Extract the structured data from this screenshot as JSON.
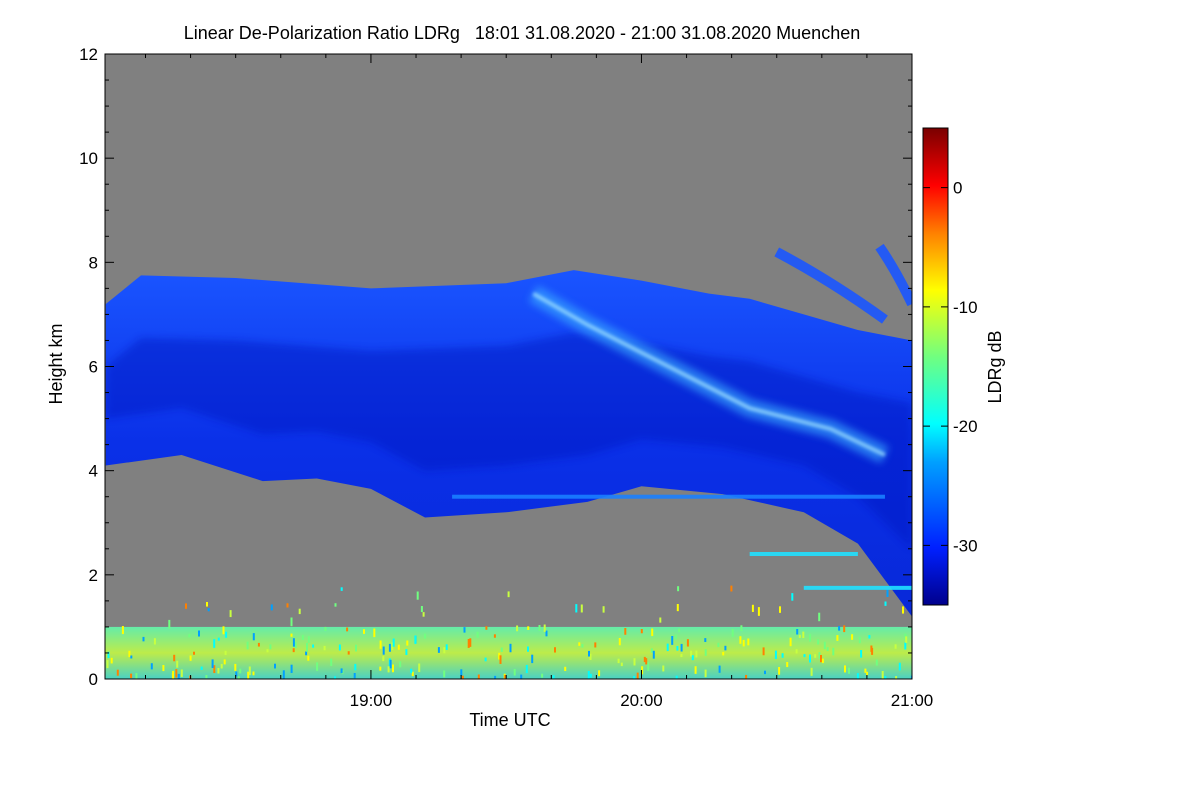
{
  "chart_data": {
    "type": "heatmap",
    "title": "Linear De-Polarization Ratio LDRg   18:01 31.08.2020 - 21:00 31.08.2020 Muenchen",
    "xlabel": "Time UTC",
    "ylabel": "Height km",
    "x_range_hours": [
      18.017,
      21.0
    ],
    "x_ticks": [
      {
        "value": 19.0,
        "label": "19:00"
      },
      {
        "value": 20.0,
        "label": "20:00"
      },
      {
        "value": 21.0,
        "label": "21:00"
      }
    ],
    "y_range_km": [
      0,
      12
    ],
    "y_ticks": [
      0,
      2,
      4,
      6,
      8,
      10,
      12
    ],
    "colorbar": {
      "label": "LDRg dB",
      "range": [
        -35,
        5
      ],
      "ticks": [
        0,
        -10,
        -20,
        -30
      ]
    },
    "no_data_color": "#808080",
    "cloud_layer": {
      "description_values": "cirrus layer, LDRg mostly -33 to -28 dB",
      "top_km": [
        {
          "t": 18.02,
          "h": 7.2
        },
        {
          "t": 18.15,
          "h": 7.75
        },
        {
          "t": 18.5,
          "h": 7.7
        },
        {
          "t": 19.0,
          "h": 7.5
        },
        {
          "t": 19.5,
          "h": 7.6
        },
        {
          "t": 19.75,
          "h": 7.85
        },
        {
          "t": 20.0,
          "h": 7.65
        },
        {
          "t": 20.25,
          "h": 7.4
        },
        {
          "t": 20.4,
          "h": 7.3
        },
        {
          "t": 20.6,
          "h": 7.0
        },
        {
          "t": 20.8,
          "h": 6.7
        },
        {
          "t": 21.0,
          "h": 6.5
        }
      ],
      "base_km": [
        {
          "t": 18.02,
          "h": 4.1
        },
        {
          "t": 18.3,
          "h": 4.3
        },
        {
          "t": 18.6,
          "h": 3.8
        },
        {
          "t": 18.8,
          "h": 3.85
        },
        {
          "t": 19.0,
          "h": 3.65
        },
        {
          "t": 19.2,
          "h": 3.1
        },
        {
          "t": 19.5,
          "h": 3.2
        },
        {
          "t": 19.8,
          "h": 3.4
        },
        {
          "t": 20.0,
          "h": 3.7
        },
        {
          "t": 20.3,
          "h": 3.55
        },
        {
          "t": 20.6,
          "h": 3.2
        },
        {
          "t": 20.8,
          "h": 2.6
        },
        {
          "t": 21.0,
          "h": 1.2
        }
      ],
      "depolarization_streak": {
        "ldr_db": -22,
        "path": [
          {
            "t": 19.6,
            "h": 7.4
          },
          {
            "t": 19.8,
            "h": 6.8
          },
          {
            "t": 20.1,
            "h": 6.0
          },
          {
            "t": 20.4,
            "h": 5.2
          },
          {
            "t": 20.7,
            "h": 4.8
          },
          {
            "t": 20.9,
            "h": 4.3
          }
        ]
      },
      "upper_fallstreaks": [
        {
          "t_start": 20.5,
          "h_start": 8.2,
          "t_end": 20.9,
          "h_end": 6.9
        },
        {
          "t_start": 20.88,
          "h_start": 8.3,
          "t_end": 21.0,
          "h_end": 7.2
        }
      ]
    },
    "boundary_layer": {
      "top_km": 1.0,
      "ldr_db_range": [
        -25,
        -8
      ]
    },
    "low_level_layers": [
      {
        "t_start": 20.6,
        "t_end": 21.0,
        "h_km": 1.75,
        "ldr_db": -22
      },
      {
        "t_start": 20.4,
        "t_end": 20.8,
        "h_km": 2.4,
        "ldr_db": -22
      },
      {
        "t_start": 19.3,
        "t_end": 20.9,
        "h_km": 3.5,
        "ldr_db": -24
      }
    ]
  }
}
